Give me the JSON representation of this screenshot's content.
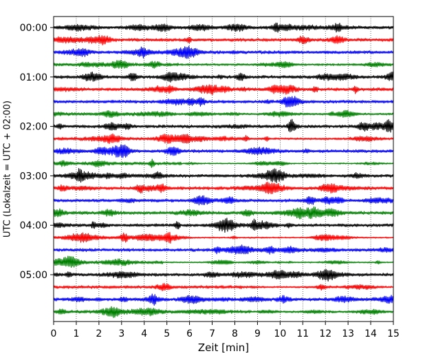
{
  "chart_data": {
    "type": "line",
    "title": "",
    "xlabel": "Zeit  [min]",
    "ylabel": "UTC (Lokalzeit = UTC + 02:00)",
    "xlim": [
      0,
      15
    ],
    "x_ticks": [
      "0",
      "1",
      "2",
      "3",
      "4",
      "5",
      "6",
      "7",
      "8",
      "9",
      "10",
      "11",
      "12",
      "13",
      "14",
      "15"
    ],
    "y_ticks": [
      "00:00",
      "01:00",
      "02:00",
      "03:00",
      "04:00",
      "05:00"
    ],
    "grid": "vertical dotted lines at each minute",
    "colors": [
      "#000000",
      "#ff0000",
      "#0000ff",
      "#008000"
    ],
    "traces": [
      {
        "start": "00:00",
        "color": "#000000"
      },
      {
        "start": "00:15",
        "color": "#ff0000"
      },
      {
        "start": "00:30",
        "color": "#0000ff"
      },
      {
        "start": "00:45",
        "color": "#008000"
      },
      {
        "start": "01:00",
        "color": "#000000"
      },
      {
        "start": "01:15",
        "color": "#ff0000"
      },
      {
        "start": "01:30",
        "color": "#0000ff"
      },
      {
        "start": "01:45",
        "color": "#008000"
      },
      {
        "start": "02:00",
        "color": "#000000"
      },
      {
        "start": "02:15",
        "color": "#ff0000"
      },
      {
        "start": "02:30",
        "color": "#0000ff"
      },
      {
        "start": "02:45",
        "color": "#008000"
      },
      {
        "start": "03:00",
        "color": "#000000"
      },
      {
        "start": "03:15",
        "color": "#ff0000"
      },
      {
        "start": "03:30",
        "color": "#0000ff"
      },
      {
        "start": "03:45",
        "color": "#008000"
      },
      {
        "start": "04:00",
        "color": "#000000"
      },
      {
        "start": "04:15",
        "color": "#ff0000"
      },
      {
        "start": "04:30",
        "color": "#0000ff"
      },
      {
        "start": "04:45",
        "color": "#008000"
      },
      {
        "start": "05:00",
        "color": "#000000"
      },
      {
        "start": "05:15",
        "color": "#ff0000"
      },
      {
        "start": "05:30",
        "color": "#0000ff"
      },
      {
        "start": "05:45",
        "color": "#008000"
      }
    ]
  }
}
